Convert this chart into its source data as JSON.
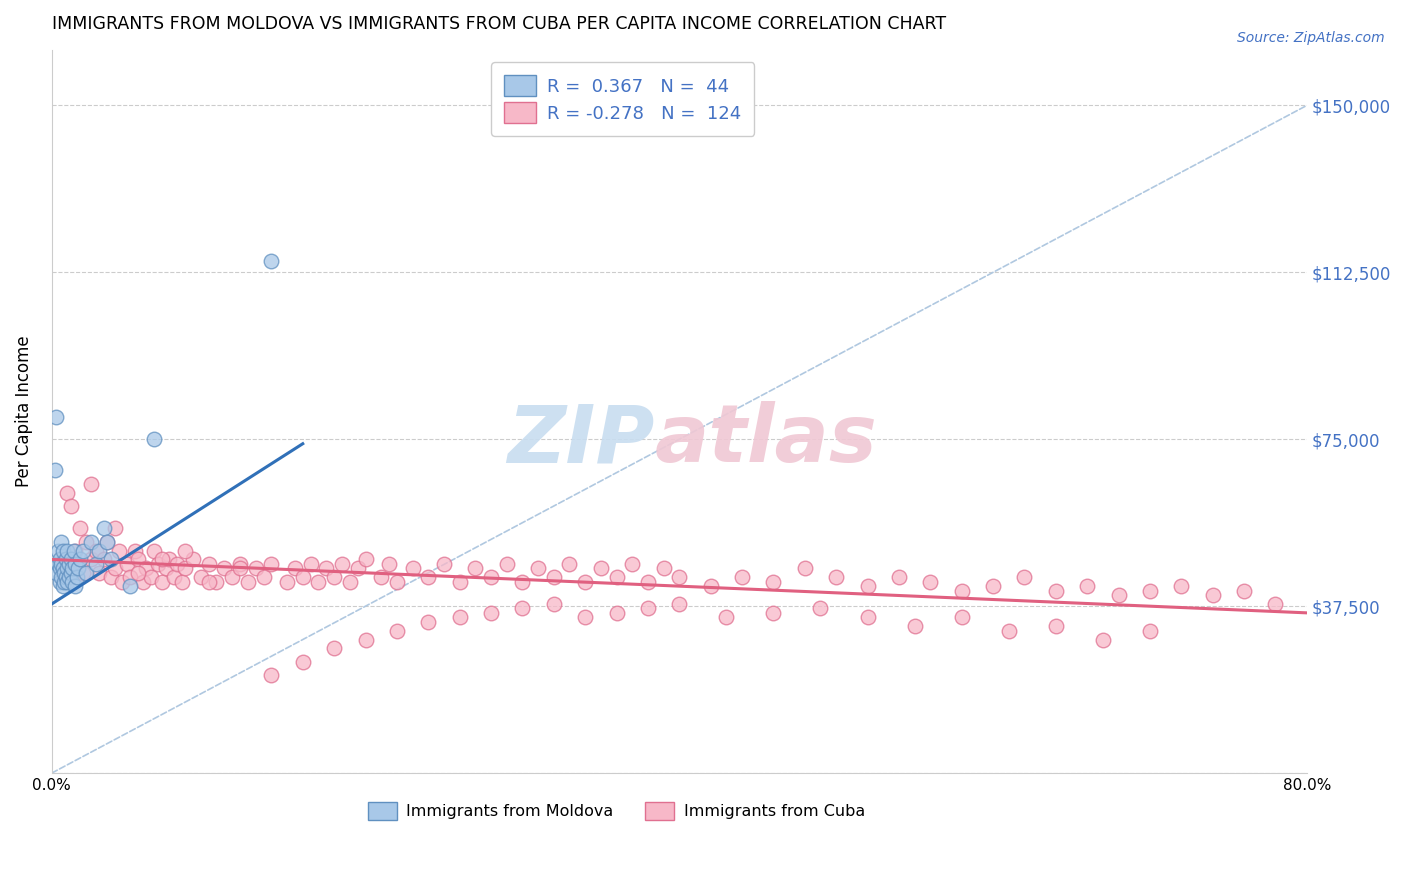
{
  "title": "IMMIGRANTS FROM MOLDOVA VS IMMIGRANTS FROM CUBA PER CAPITA INCOME CORRELATION CHART",
  "source": "Source: ZipAtlas.com",
  "ylabel": "Per Capita Income",
  "xlim": [
    0.0,
    0.8
  ],
  "ylim": [
    0,
    162500
  ],
  "yticks": [
    0,
    37500,
    75000,
    112500,
    150000
  ],
  "ytick_labels": [
    "",
    "$37,500",
    "$75,000",
    "$112,500",
    "$150,000"
  ],
  "xticks": [
    0.0,
    0.1,
    0.2,
    0.3,
    0.4,
    0.5,
    0.6,
    0.7,
    0.8
  ],
  "xtick_labels": [
    "0.0%",
    "",
    "",
    "",
    "",
    "",
    "",
    "",
    "80.0%"
  ],
  "moldova_color": "#a8c8e8",
  "cuba_color": "#f7b8c8",
  "moldova_edge_color": "#6090c0",
  "cuba_edge_color": "#e07090",
  "moldova_line_color": "#3070b8",
  "cuba_line_color": "#e06080",
  "ref_line_color": "#b0c8e0",
  "legend_text_color": "#4472c4",
  "axis_label_color": "#4472c4",
  "watermark_zip_color": "#c8ddf0",
  "watermark_atlas_color": "#f0c8d4",
  "moldova_R": 0.367,
  "moldova_N": 44,
  "cuba_R": -0.278,
  "cuba_N": 124,
  "moldova_x": [
    0.002,
    0.003,
    0.003,
    0.004,
    0.004,
    0.005,
    0.005,
    0.005,
    0.006,
    0.006,
    0.006,
    0.007,
    0.007,
    0.007,
    0.008,
    0.008,
    0.009,
    0.009,
    0.01,
    0.01,
    0.01,
    0.011,
    0.011,
    0.012,
    0.012,
    0.013,
    0.013,
    0.014,
    0.015,
    0.015,
    0.016,
    0.017,
    0.018,
    0.02,
    0.022,
    0.025,
    0.028,
    0.03,
    0.033,
    0.035,
    0.038,
    0.05,
    0.065,
    0.14
  ],
  "moldova_y": [
    68000,
    45000,
    80000,
    47000,
    50000,
    43000,
    46000,
    48000,
    44000,
    47000,
    52000,
    42000,
    46000,
    50000,
    43000,
    45000,
    44000,
    48000,
    43000,
    46000,
    50000,
    44000,
    47000,
    45000,
    48000,
    43000,
    46000,
    50000,
    42000,
    47000,
    44000,
    46000,
    48000,
    50000,
    45000,
    52000,
    47000,
    50000,
    55000,
    52000,
    48000,
    42000,
    75000,
    115000
  ],
  "cuba_x": [
    0.01,
    0.015,
    0.018,
    0.02,
    0.022,
    0.025,
    0.028,
    0.03,
    0.033,
    0.035,
    0.038,
    0.04,
    0.043,
    0.045,
    0.048,
    0.05,
    0.053,
    0.055,
    0.058,
    0.06,
    0.063,
    0.065,
    0.068,
    0.07,
    0.073,
    0.075,
    0.078,
    0.08,
    0.083,
    0.085,
    0.09,
    0.095,
    0.1,
    0.105,
    0.11,
    0.115,
    0.12,
    0.125,
    0.13,
    0.135,
    0.14,
    0.15,
    0.155,
    0.16,
    0.165,
    0.17,
    0.175,
    0.18,
    0.185,
    0.19,
    0.195,
    0.2,
    0.21,
    0.215,
    0.22,
    0.23,
    0.24,
    0.25,
    0.26,
    0.27,
    0.28,
    0.29,
    0.3,
    0.31,
    0.32,
    0.33,
    0.34,
    0.35,
    0.36,
    0.37,
    0.38,
    0.39,
    0.4,
    0.42,
    0.44,
    0.46,
    0.48,
    0.5,
    0.52,
    0.54,
    0.56,
    0.58,
    0.6,
    0.62,
    0.64,
    0.66,
    0.68,
    0.7,
    0.72,
    0.74,
    0.76,
    0.78,
    0.012,
    0.025,
    0.04,
    0.055,
    0.07,
    0.085,
    0.1,
    0.12,
    0.14,
    0.16,
    0.18,
    0.2,
    0.22,
    0.24,
    0.26,
    0.28,
    0.3,
    0.32,
    0.34,
    0.36,
    0.38,
    0.4,
    0.43,
    0.46,
    0.49,
    0.52,
    0.55,
    0.58,
    0.61,
    0.64,
    0.67,
    0.7
  ],
  "cuba_y": [
    63000,
    50000,
    55000,
    45000,
    52000,
    48000,
    50000,
    45000,
    48000,
    52000,
    44000,
    46000,
    50000,
    43000,
    47000,
    44000,
    50000,
    48000,
    43000,
    46000,
    44000,
    50000,
    47000,
    43000,
    46000,
    48000,
    44000,
    47000,
    43000,
    46000,
    48000,
    44000,
    47000,
    43000,
    46000,
    44000,
    47000,
    43000,
    46000,
    44000,
    47000,
    43000,
    46000,
    44000,
    47000,
    43000,
    46000,
    44000,
    47000,
    43000,
    46000,
    48000,
    44000,
    47000,
    43000,
    46000,
    44000,
    47000,
    43000,
    46000,
    44000,
    47000,
    43000,
    46000,
    44000,
    47000,
    43000,
    46000,
    44000,
    47000,
    43000,
    46000,
    44000,
    42000,
    44000,
    43000,
    46000,
    44000,
    42000,
    44000,
    43000,
    41000,
    42000,
    44000,
    41000,
    42000,
    40000,
    41000,
    42000,
    40000,
    41000,
    38000,
    60000,
    65000,
    55000,
    45000,
    48000,
    50000,
    43000,
    46000,
    22000,
    25000,
    28000,
    30000,
    32000,
    34000,
    35000,
    36000,
    37000,
    38000,
    35000,
    36000,
    37000,
    38000,
    35000,
    36000,
    37000,
    35000,
    33000,
    35000,
    32000,
    33000,
    30000,
    32000
  ]
}
